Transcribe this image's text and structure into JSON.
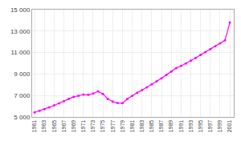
{
  "chart_data": {
    "type": "line",
    "x": [
      1961,
      1962,
      1963,
      1964,
      1965,
      1966,
      1967,
      1968,
      1969,
      1970,
      1971,
      1972,
      1973,
      1974,
      1975,
      1976,
      1977,
      1978,
      1979,
      1980,
      1981,
      1982,
      1983,
      1984,
      1985,
      1986,
      1987,
      1988,
      1989,
      1990,
      1991,
      1992,
      1993,
      1994,
      1995,
      1996,
      1997,
      1998,
      1999,
      2000,
      2001
    ],
    "values": [
      5430,
      5570,
      5730,
      5900,
      6080,
      6270,
      6480,
      6690,
      6870,
      6980,
      7090,
      7070,
      7180,
      7380,
      7150,
      6680,
      6440,
      6300,
      6280,
      6680,
      6980,
      7250,
      7500,
      7760,
      8040,
      8320,
      8610,
      8910,
      9230,
      9560,
      9760,
      9990,
      10250,
      10510,
      10780,
      11050,
      11320,
      11590,
      11870,
      12140,
      13800
    ],
    "color": "#FF00FF",
    "marker": "circle",
    "xlim": [
      1960.5,
      2001.8
    ],
    "xticks": [
      1961,
      1963,
      1965,
      1967,
      1969,
      1971,
      1973,
      1975,
      1977,
      1979,
      1981,
      1983,
      1985,
      1987,
      1989,
      1991,
      1993,
      1995,
      1997,
      1999,
      2001
    ],
    "ylim": [
      5000,
      15000
    ],
    "yticks": [
      {
        "value": 5000,
        "label": "5 000"
      },
      {
        "value": 7000,
        "label": "7 000"
      },
      {
        "value": 9000,
        "label": "9 000"
      },
      {
        "value": 11000,
        "label": "11 000"
      },
      {
        "value": 13000,
        "label": "13 000"
      },
      {
        "value": 15000,
        "label": "15 000"
      }
    ],
    "grid": true
  }
}
